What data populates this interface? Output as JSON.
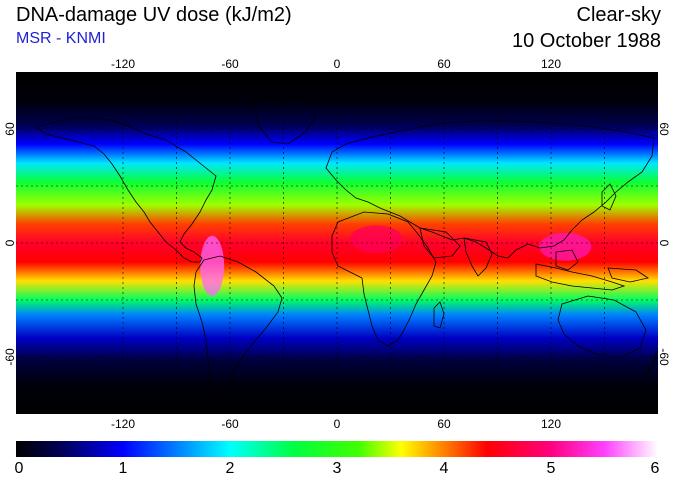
{
  "header": {
    "title": "DNA-damage UV dose (kJ/m2)",
    "subtitle": "MSR - KNMI",
    "condition": "Clear-sky",
    "date": "10 October 1988"
  },
  "map": {
    "projection": "plate carree (equirectangular)",
    "lon_range": [
      -180,
      180
    ],
    "lat_range": [
      -90,
      90
    ],
    "lon_ticks": [
      "-120",
      "-60",
      "0",
      "60",
      "120"
    ],
    "lat_ticks": [
      "60",
      "0",
      "-60"
    ],
    "grid_lines": {
      "lon": [
        -120,
        -90,
        -60,
        -30,
        0,
        30,
        60,
        90,
        120,
        150
      ],
      "lat": [
        -60,
        -30,
        0,
        30,
        60
      ]
    },
    "bands": [
      {
        "lat": 90,
        "dose": 0.0
      },
      {
        "lat": 75,
        "dose": 0.05
      },
      {
        "lat": 62,
        "dose": 0.4
      },
      {
        "lat": 52,
        "dose": 1.0
      },
      {
        "lat": 42,
        "dose": 1.9
      },
      {
        "lat": 32,
        "dose": 2.7
      },
      {
        "lat": 20,
        "dose": 3.4
      },
      {
        "lat": 10,
        "dose": 4.2
      },
      {
        "lat": 0,
        "dose": 4.6
      },
      {
        "lat": -10,
        "dose": 4.4
      },
      {
        "lat": -20,
        "dose": 3.7
      },
      {
        "lat": -30,
        "dose": 2.5
      },
      {
        "lat": -38,
        "dose": 1.5
      },
      {
        "lat": -50,
        "dose": 0.8
      },
      {
        "lat": -62,
        "dose": 0.3
      },
      {
        "lat": -75,
        "dose": 0.05
      },
      {
        "lat": -90,
        "dose": 0.0
      }
    ],
    "hotspots": [
      {
        "name": "andes",
        "lon": -70,
        "lat": -12,
        "dose": 5.6
      },
      {
        "name": "maritime-continent",
        "lon": 128,
        "lat": -2,
        "dose": 5.2
      },
      {
        "name": "africa-equatorial",
        "lon": 22,
        "lat": 2,
        "dose": 4.8
      }
    ]
  },
  "colorbar": {
    "min": 0,
    "max": 6,
    "tick_labels": [
      "0",
      "1",
      "2",
      "3",
      "4",
      "5",
      "6"
    ],
    "stops": [
      {
        "value": 0.0,
        "color": "#000000"
      },
      {
        "value": 0.4,
        "color": "#000050"
      },
      {
        "value": 1.0,
        "color": "#0000ff"
      },
      {
        "value": 1.5,
        "color": "#0080ff"
      },
      {
        "value": 2.0,
        "color": "#00ffff"
      },
      {
        "value": 2.6,
        "color": "#00ff40"
      },
      {
        "value": 3.2,
        "color": "#40ff00"
      },
      {
        "value": 3.6,
        "color": "#ffff00"
      },
      {
        "value": 4.0,
        "color": "#ff8000"
      },
      {
        "value": 4.4,
        "color": "#ff0000"
      },
      {
        "value": 5.0,
        "color": "#ff0080"
      },
      {
        "value": 5.5,
        "color": "#ff40ff"
      },
      {
        "value": 6.0,
        "color": "#ffffff"
      }
    ]
  }
}
